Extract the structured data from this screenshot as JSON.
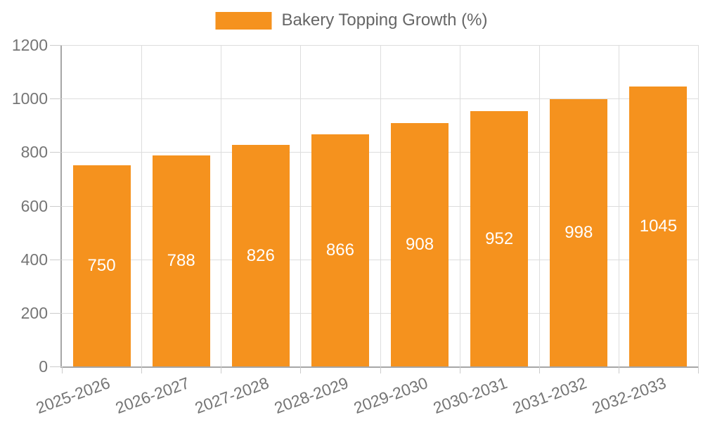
{
  "chart_data": {
    "type": "bar",
    "legend_label": "Bakery Topping Growth (%)",
    "legend_position": "top-center",
    "categories": [
      "2025-2026",
      "2026-2027",
      "2027-2028",
      "2028-2029",
      "2029-2030",
      "2030-2031",
      "2031-2032",
      "2032-2033"
    ],
    "values": [
      750,
      788,
      826,
      866,
      908,
      952,
      998,
      1045
    ],
    "xlabel": "",
    "ylabel": "",
    "ylim": [
      0,
      1200
    ],
    "yticks": [
      0,
      200,
      400,
      600,
      800,
      1000,
      1200
    ],
    "grid": true,
    "bar_label_position": "inside-center",
    "x_tick_rotation_deg": -20,
    "colors": {
      "bar": "#F5921E",
      "bar_label": "#FFFFFF",
      "axis_label": "#757575",
      "legend_text": "#666666",
      "grid_line": "#DDDDDD",
      "axis_line": "#A6A6A6",
      "tick": "#CCCCCC",
      "background": "#FFFFFF"
    }
  }
}
